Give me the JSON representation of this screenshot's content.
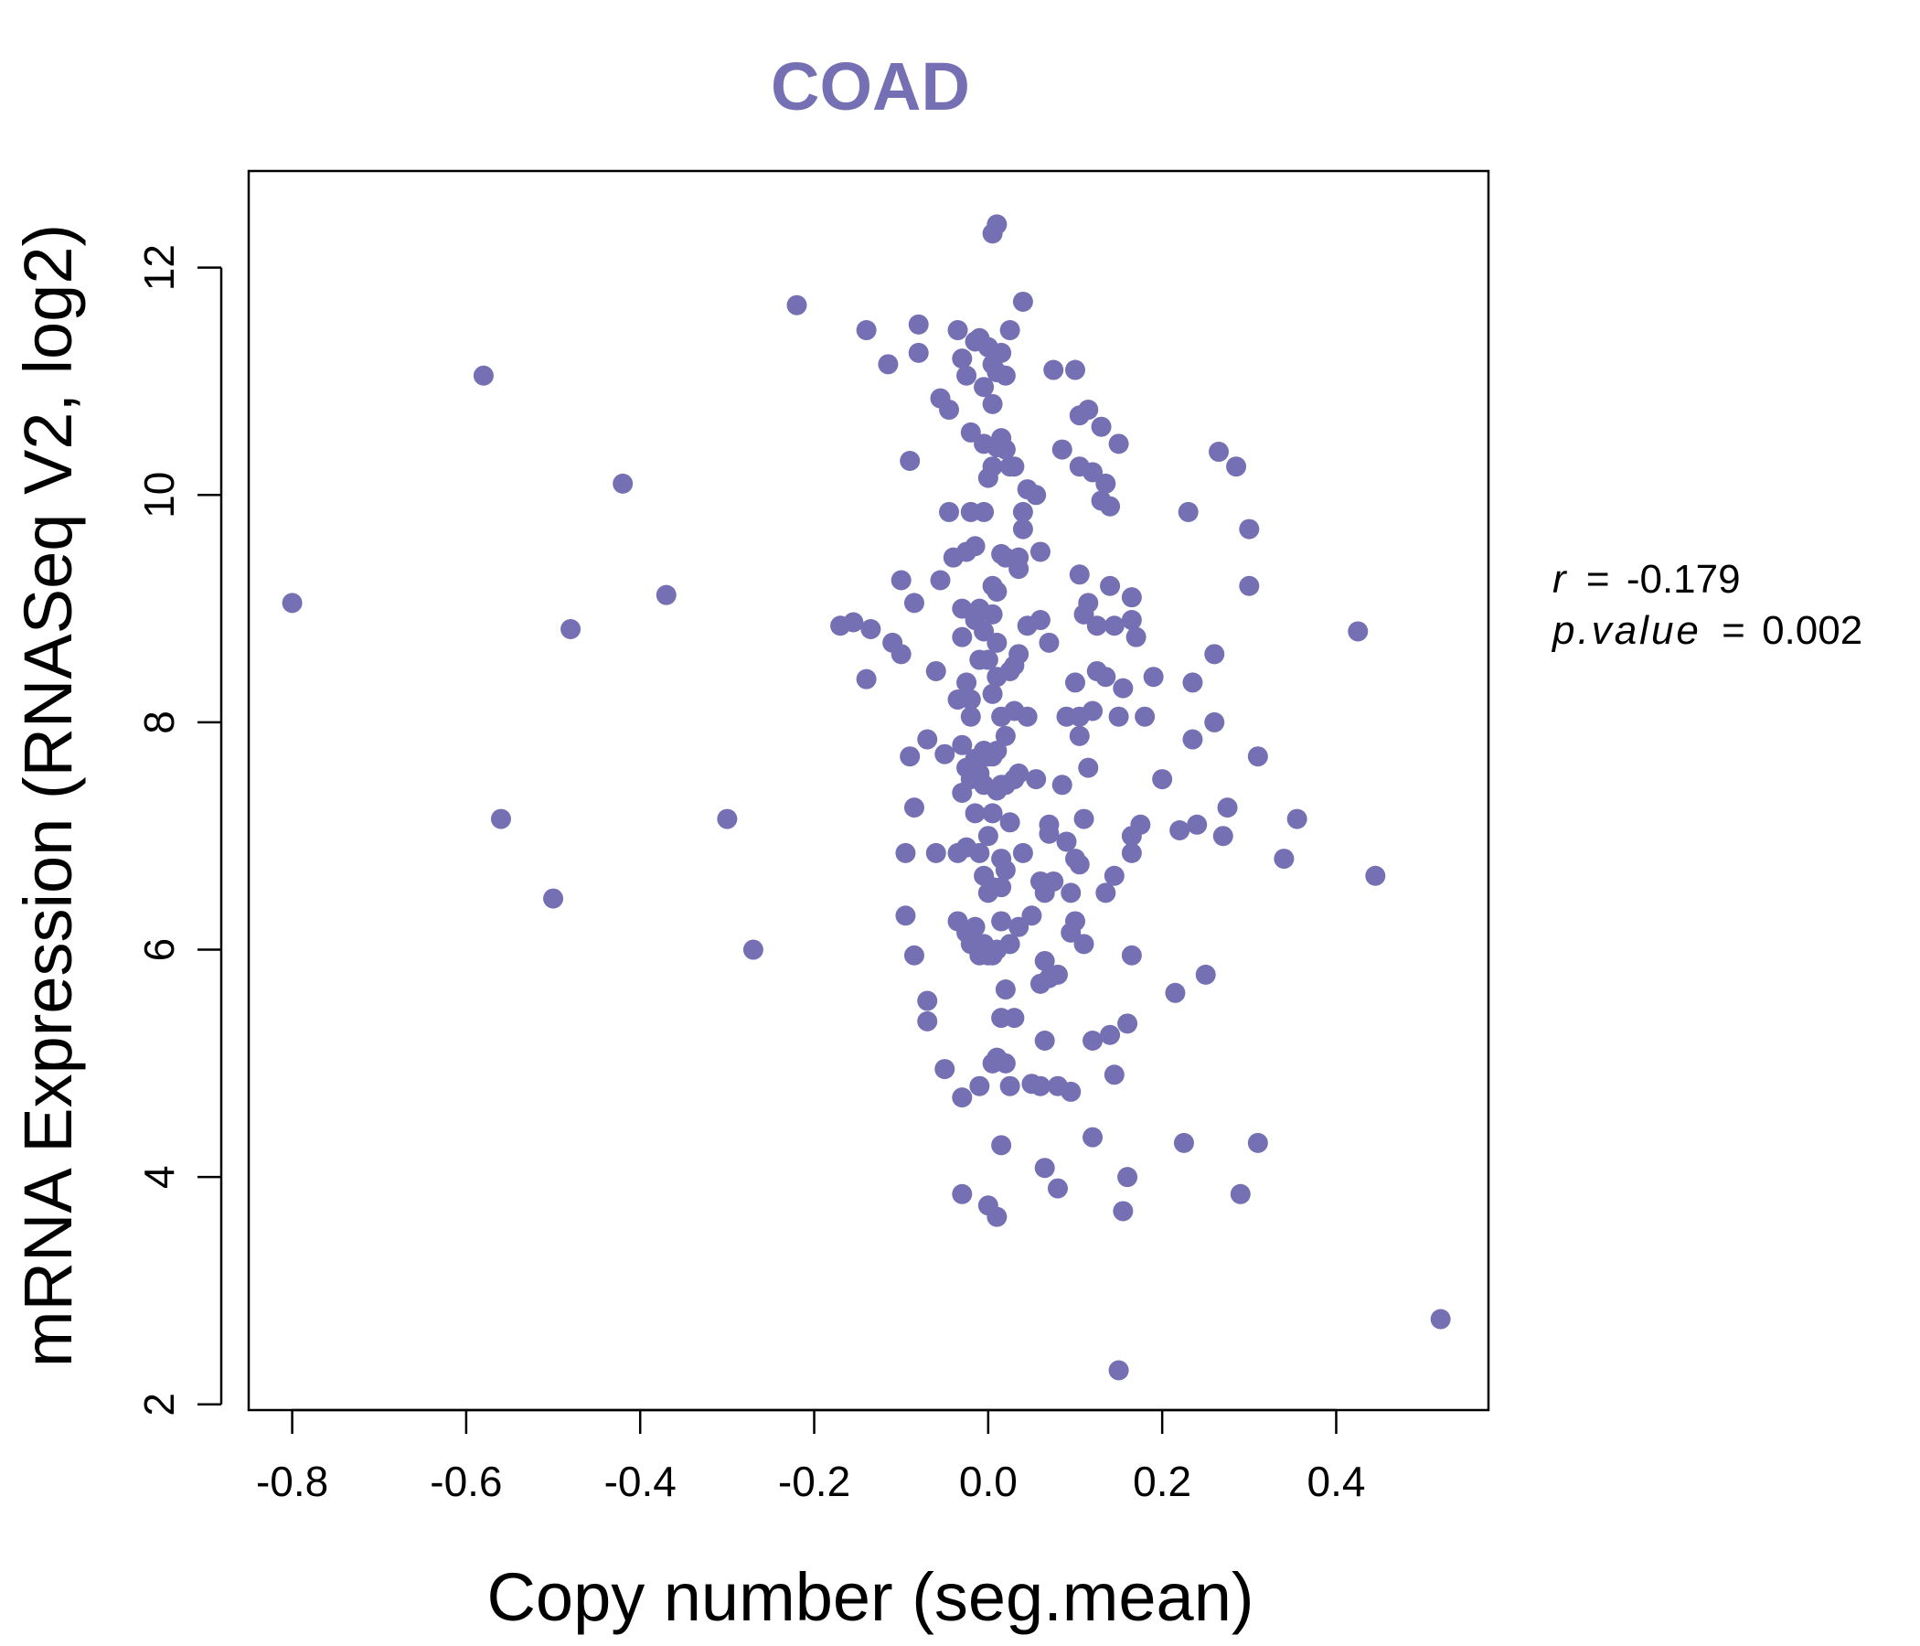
{
  "chart_data": {
    "type": "scatter",
    "title": "COAD",
    "xlabel": "Copy number (seg.mean)",
    "ylabel": "mRNA Expression (RNASeq V2, log2)",
    "xlim": [
      -0.85,
      0.575
    ],
    "ylim": [
      1.95,
      12.85
    ],
    "x_ticks": [
      -0.8,
      -0.6,
      -0.4,
      -0.2,
      0.0,
      0.2,
      0.4
    ],
    "x_tick_labels": [
      "-0.8",
      "-0.6",
      "-0.4",
      "-0.2",
      "0.0",
      "0.2",
      "0.4"
    ],
    "y_ticks": [
      2,
      4,
      6,
      8,
      10,
      12
    ],
    "y_tick_labels": [
      "2",
      "4",
      "6",
      "8",
      "10",
      "12"
    ],
    "point_color": "#7570b3",
    "grid": false,
    "stats": {
      "r_label": "r",
      "r_value": "-0.179",
      "p_label": "p.value",
      "p_value": "0.002",
      "equals": "="
    },
    "points": [
      [
        -0.8,
        9.05
      ],
      [
        -0.58,
        11.05
      ],
      [
        -0.56,
        7.15
      ],
      [
        -0.5,
        6.45
      ],
      [
        -0.48,
        8.82
      ],
      [
        -0.42,
        10.1
      ],
      [
        -0.37,
        9.12
      ],
      [
        -0.3,
        7.15
      ],
      [
        -0.27,
        6.0
      ],
      [
        -0.22,
        11.67
      ],
      [
        -0.17,
        8.85
      ],
      [
        -0.155,
        8.88
      ],
      [
        -0.14,
        8.38
      ],
      [
        -0.14,
        11.45
      ],
      [
        -0.135,
        8.82
      ],
      [
        -0.115,
        11.15
      ],
      [
        -0.11,
        8.7
      ],
      [
        -0.1,
        9.25
      ],
      [
        -0.1,
        8.6
      ],
      [
        -0.095,
        6.3
      ],
      [
        -0.095,
        6.85
      ],
      [
        -0.09,
        7.7
      ],
      [
        -0.09,
        10.3
      ],
      [
        -0.085,
        9.05
      ],
      [
        -0.085,
        7.25
      ],
      [
        -0.085,
        5.95
      ],
      [
        -0.08,
        11.25
      ],
      [
        -0.08,
        11.5
      ],
      [
        -0.07,
        5.55
      ],
      [
        -0.07,
        5.37
      ],
      [
        -0.07,
        7.85
      ],
      [
        -0.06,
        8.45
      ],
      [
        -0.06,
        6.85
      ],
      [
        -0.055,
        10.85
      ],
      [
        -0.055,
        9.25
      ],
      [
        -0.05,
        4.95
      ],
      [
        -0.045,
        10.75
      ],
      [
        -0.05,
        7.72
      ],
      [
        -0.045,
        9.85
      ],
      [
        -0.04,
        9.45
      ],
      [
        -0.035,
        11.45
      ],
      [
        -0.035,
        8.2
      ],
      [
        -0.035,
        6.25
      ],
      [
        -0.035,
        6.85
      ],
      [
        -0.03,
        11.2
      ],
      [
        -0.03,
        9.0
      ],
      [
        -0.03,
        8.75
      ],
      [
        -0.03,
        7.8
      ],
      [
        -0.03,
        7.38
      ],
      [
        -0.03,
        4.7
      ],
      [
        -0.03,
        3.85
      ],
      [
        -0.025,
        11.05
      ],
      [
        -0.025,
        9.5
      ],
      [
        -0.025,
        8.35
      ],
      [
        -0.025,
        7.6
      ],
      [
        -0.025,
        6.9
      ],
      [
        -0.025,
        6.15
      ],
      [
        -0.02,
        10.55
      ],
      [
        -0.02,
        9.85
      ],
      [
        -0.02,
        8.2
      ],
      [
        -0.02,
        8.05
      ],
      [
        -0.02,
        7.5
      ],
      [
        -0.02,
        6.05
      ],
      [
        -0.015,
        11.35
      ],
      [
        -0.015,
        9.55
      ],
      [
        -0.015,
        8.9
      ],
      [
        -0.015,
        7.68
      ],
      [
        -0.015,
        7.2
      ],
      [
        -0.015,
        6.2
      ],
      [
        -0.01,
        11.38
      ],
      [
        -0.01,
        9.0
      ],
      [
        -0.01,
        8.55
      ],
      [
        -0.01,
        7.55
      ],
      [
        -0.01,
        6.85
      ],
      [
        -0.01,
        5.95
      ],
      [
        -0.01,
        4.8
      ],
      [
        -0.005,
        10.95
      ],
      [
        -0.005,
        10.45
      ],
      [
        -0.005,
        9.85
      ],
      [
        -0.005,
        8.8
      ],
      [
        -0.005,
        7.75
      ],
      [
        -0.005,
        7.45
      ],
      [
        -0.005,
        6.65
      ],
      [
        -0.005,
        6.05
      ],
      [
        0.0,
        11.3
      ],
      [
        0.0,
        10.15
      ],
      [
        0.0,
        8.55
      ],
      [
        0.0,
        7.7
      ],
      [
        0.0,
        7.0
      ],
      [
        0.0,
        6.5
      ],
      [
        0.0,
        5.95
      ],
      [
        0.0,
        3.75
      ],
      [
        0.005,
        12.3
      ],
      [
        0.005,
        11.15
      ],
      [
        0.005,
        10.8
      ],
      [
        0.005,
        10.25
      ],
      [
        0.005,
        9.2
      ],
      [
        0.005,
        8.95
      ],
      [
        0.005,
        8.25
      ],
      [
        0.005,
        7.7
      ],
      [
        0.005,
        7.2
      ],
      [
        0.005,
        6.55
      ],
      [
        0.005,
        5.95
      ],
      [
        0.005,
        5.0
      ],
      [
        0.01,
        12.38
      ],
      [
        0.01,
        11.08
      ],
      [
        0.01,
        10.42
      ],
      [
        0.01,
        9.15
      ],
      [
        0.01,
        8.7
      ],
      [
        0.01,
        8.4
      ],
      [
        0.01,
        7.75
      ],
      [
        0.01,
        7.4
      ],
      [
        0.01,
        6.0
      ],
      [
        0.01,
        5.05
      ],
      [
        0.01,
        3.65
      ],
      [
        0.015,
        11.25
      ],
      [
        0.015,
        10.5
      ],
      [
        0.015,
        9.48
      ],
      [
        0.015,
        8.05
      ],
      [
        0.015,
        7.45
      ],
      [
        0.015,
        6.8
      ],
      [
        0.015,
        6.55
      ],
      [
        0.015,
        6.25
      ],
      [
        0.015,
        5.4
      ],
      [
        0.015,
        4.28
      ],
      [
        0.02,
        11.05
      ],
      [
        0.02,
        10.4
      ],
      [
        0.02,
        9.45
      ],
      [
        0.02,
        7.88
      ],
      [
        0.02,
        7.45
      ],
      [
        0.02,
        6.7
      ],
      [
        0.02,
        5.65
      ],
      [
        0.02,
        5.0
      ],
      [
        0.025,
        11.45
      ],
      [
        0.025,
        10.25
      ],
      [
        0.025,
        8.45
      ],
      [
        0.025,
        7.12
      ],
      [
        0.025,
        6.05
      ],
      [
        0.025,
        4.8
      ],
      [
        0.03,
        10.25
      ],
      [
        0.03,
        8.5
      ],
      [
        0.03,
        8.1
      ],
      [
        0.03,
        7.5
      ],
      [
        0.03,
        5.4
      ],
      [
        0.035,
        9.35
      ],
      [
        0.035,
        9.45
      ],
      [
        0.035,
        8.6
      ],
      [
        0.035,
        7.55
      ],
      [
        0.035,
        6.2
      ],
      [
        0.04,
        11.7
      ],
      [
        0.04,
        9.85
      ],
      [
        0.04,
        9.7
      ],
      [
        0.04,
        6.85
      ],
      [
        0.045,
        10.05
      ],
      [
        0.045,
        8.85
      ],
      [
        0.045,
        8.05
      ],
      [
        0.05,
        6.3
      ],
      [
        0.05,
        4.82
      ],
      [
        0.055,
        10.0
      ],
      [
        0.055,
        7.5
      ],
      [
        0.06,
        9.5
      ],
      [
        0.06,
        8.9
      ],
      [
        0.06,
        6.6
      ],
      [
        0.06,
        5.7
      ],
      [
        0.06,
        4.8
      ],
      [
        0.065,
        6.5
      ],
      [
        0.065,
        5.9
      ],
      [
        0.065,
        5.2
      ],
      [
        0.065,
        4.08
      ],
      [
        0.07,
        8.7
      ],
      [
        0.07,
        7.1
      ],
      [
        0.07,
        7.02
      ],
      [
        0.07,
        5.75
      ],
      [
        0.075,
        11.1
      ],
      [
        0.075,
        6.6
      ],
      [
        0.08,
        4.8
      ],
      [
        0.08,
        5.78
      ],
      [
        0.08,
        3.9
      ],
      [
        0.085,
        10.4
      ],
      [
        0.085,
        7.45
      ],
      [
        0.09,
        8.05
      ],
      [
        0.09,
        6.95
      ],
      [
        0.095,
        6.5
      ],
      [
        0.095,
        6.15
      ],
      [
        0.095,
        4.75
      ],
      [
        0.1,
        11.1
      ],
      [
        0.1,
        8.35
      ],
      [
        0.1,
        6.8
      ],
      [
        0.1,
        6.25
      ],
      [
        0.105,
        10.25
      ],
      [
        0.105,
        10.7
      ],
      [
        0.105,
        9.3
      ],
      [
        0.105,
        8.05
      ],
      [
        0.105,
        7.88
      ],
      [
        0.105,
        6.75
      ],
      [
        0.11,
        8.95
      ],
      [
        0.11,
        7.15
      ],
      [
        0.11,
        6.05
      ],
      [
        0.115,
        10.75
      ],
      [
        0.115,
        9.05
      ],
      [
        0.115,
        7.6
      ],
      [
        0.12,
        10.2
      ],
      [
        0.12,
        8.1
      ],
      [
        0.12,
        5.2
      ],
      [
        0.12,
        4.35
      ],
      [
        0.125,
        8.85
      ],
      [
        0.125,
        8.45
      ],
      [
        0.13,
        10.6
      ],
      [
        0.13,
        9.95
      ],
      [
        0.135,
        10.1
      ],
      [
        0.135,
        8.4
      ],
      [
        0.135,
        6.5
      ],
      [
        0.14,
        9.2
      ],
      [
        0.14,
        9.9
      ],
      [
        0.14,
        5.25
      ],
      [
        0.145,
        8.85
      ],
      [
        0.145,
        6.65
      ],
      [
        0.145,
        4.9
      ],
      [
        0.15,
        10.45
      ],
      [
        0.15,
        8.05
      ],
      [
        0.15,
        2.3
      ],
      [
        0.155,
        8.3
      ],
      [
        0.155,
        3.7
      ],
      [
        0.16,
        5.35
      ],
      [
        0.16,
        4.0
      ],
      [
        0.165,
        9.1
      ],
      [
        0.165,
        8.9
      ],
      [
        0.165,
        7.0
      ],
      [
        0.165,
        6.85
      ],
      [
        0.165,
        5.95
      ],
      [
        0.17,
        8.75
      ],
      [
        0.175,
        7.1
      ],
      [
        0.18,
        8.05
      ],
      [
        0.19,
        8.4
      ],
      [
        0.2,
        7.5
      ],
      [
        0.215,
        5.62
      ],
      [
        0.22,
        7.05
      ],
      [
        0.225,
        4.3
      ],
      [
        0.23,
        9.85
      ],
      [
        0.235,
        8.35
      ],
      [
        0.235,
        7.85
      ],
      [
        0.24,
        7.1
      ],
      [
        0.25,
        5.78
      ],
      [
        0.26,
        8.0
      ],
      [
        0.26,
        8.6
      ],
      [
        0.265,
        10.38
      ],
      [
        0.27,
        7.0
      ],
      [
        0.275,
        7.25
      ],
      [
        0.285,
        10.25
      ],
      [
        0.29,
        3.85
      ],
      [
        0.3,
        9.7
      ],
      [
        0.3,
        9.2
      ],
      [
        0.31,
        7.7
      ],
      [
        0.31,
        4.3
      ],
      [
        0.34,
        6.8
      ],
      [
        0.355,
        7.15
      ],
      [
        0.425,
        8.8
      ],
      [
        0.445,
        6.65
      ],
      [
        0.52,
        2.75
      ]
    ]
  }
}
